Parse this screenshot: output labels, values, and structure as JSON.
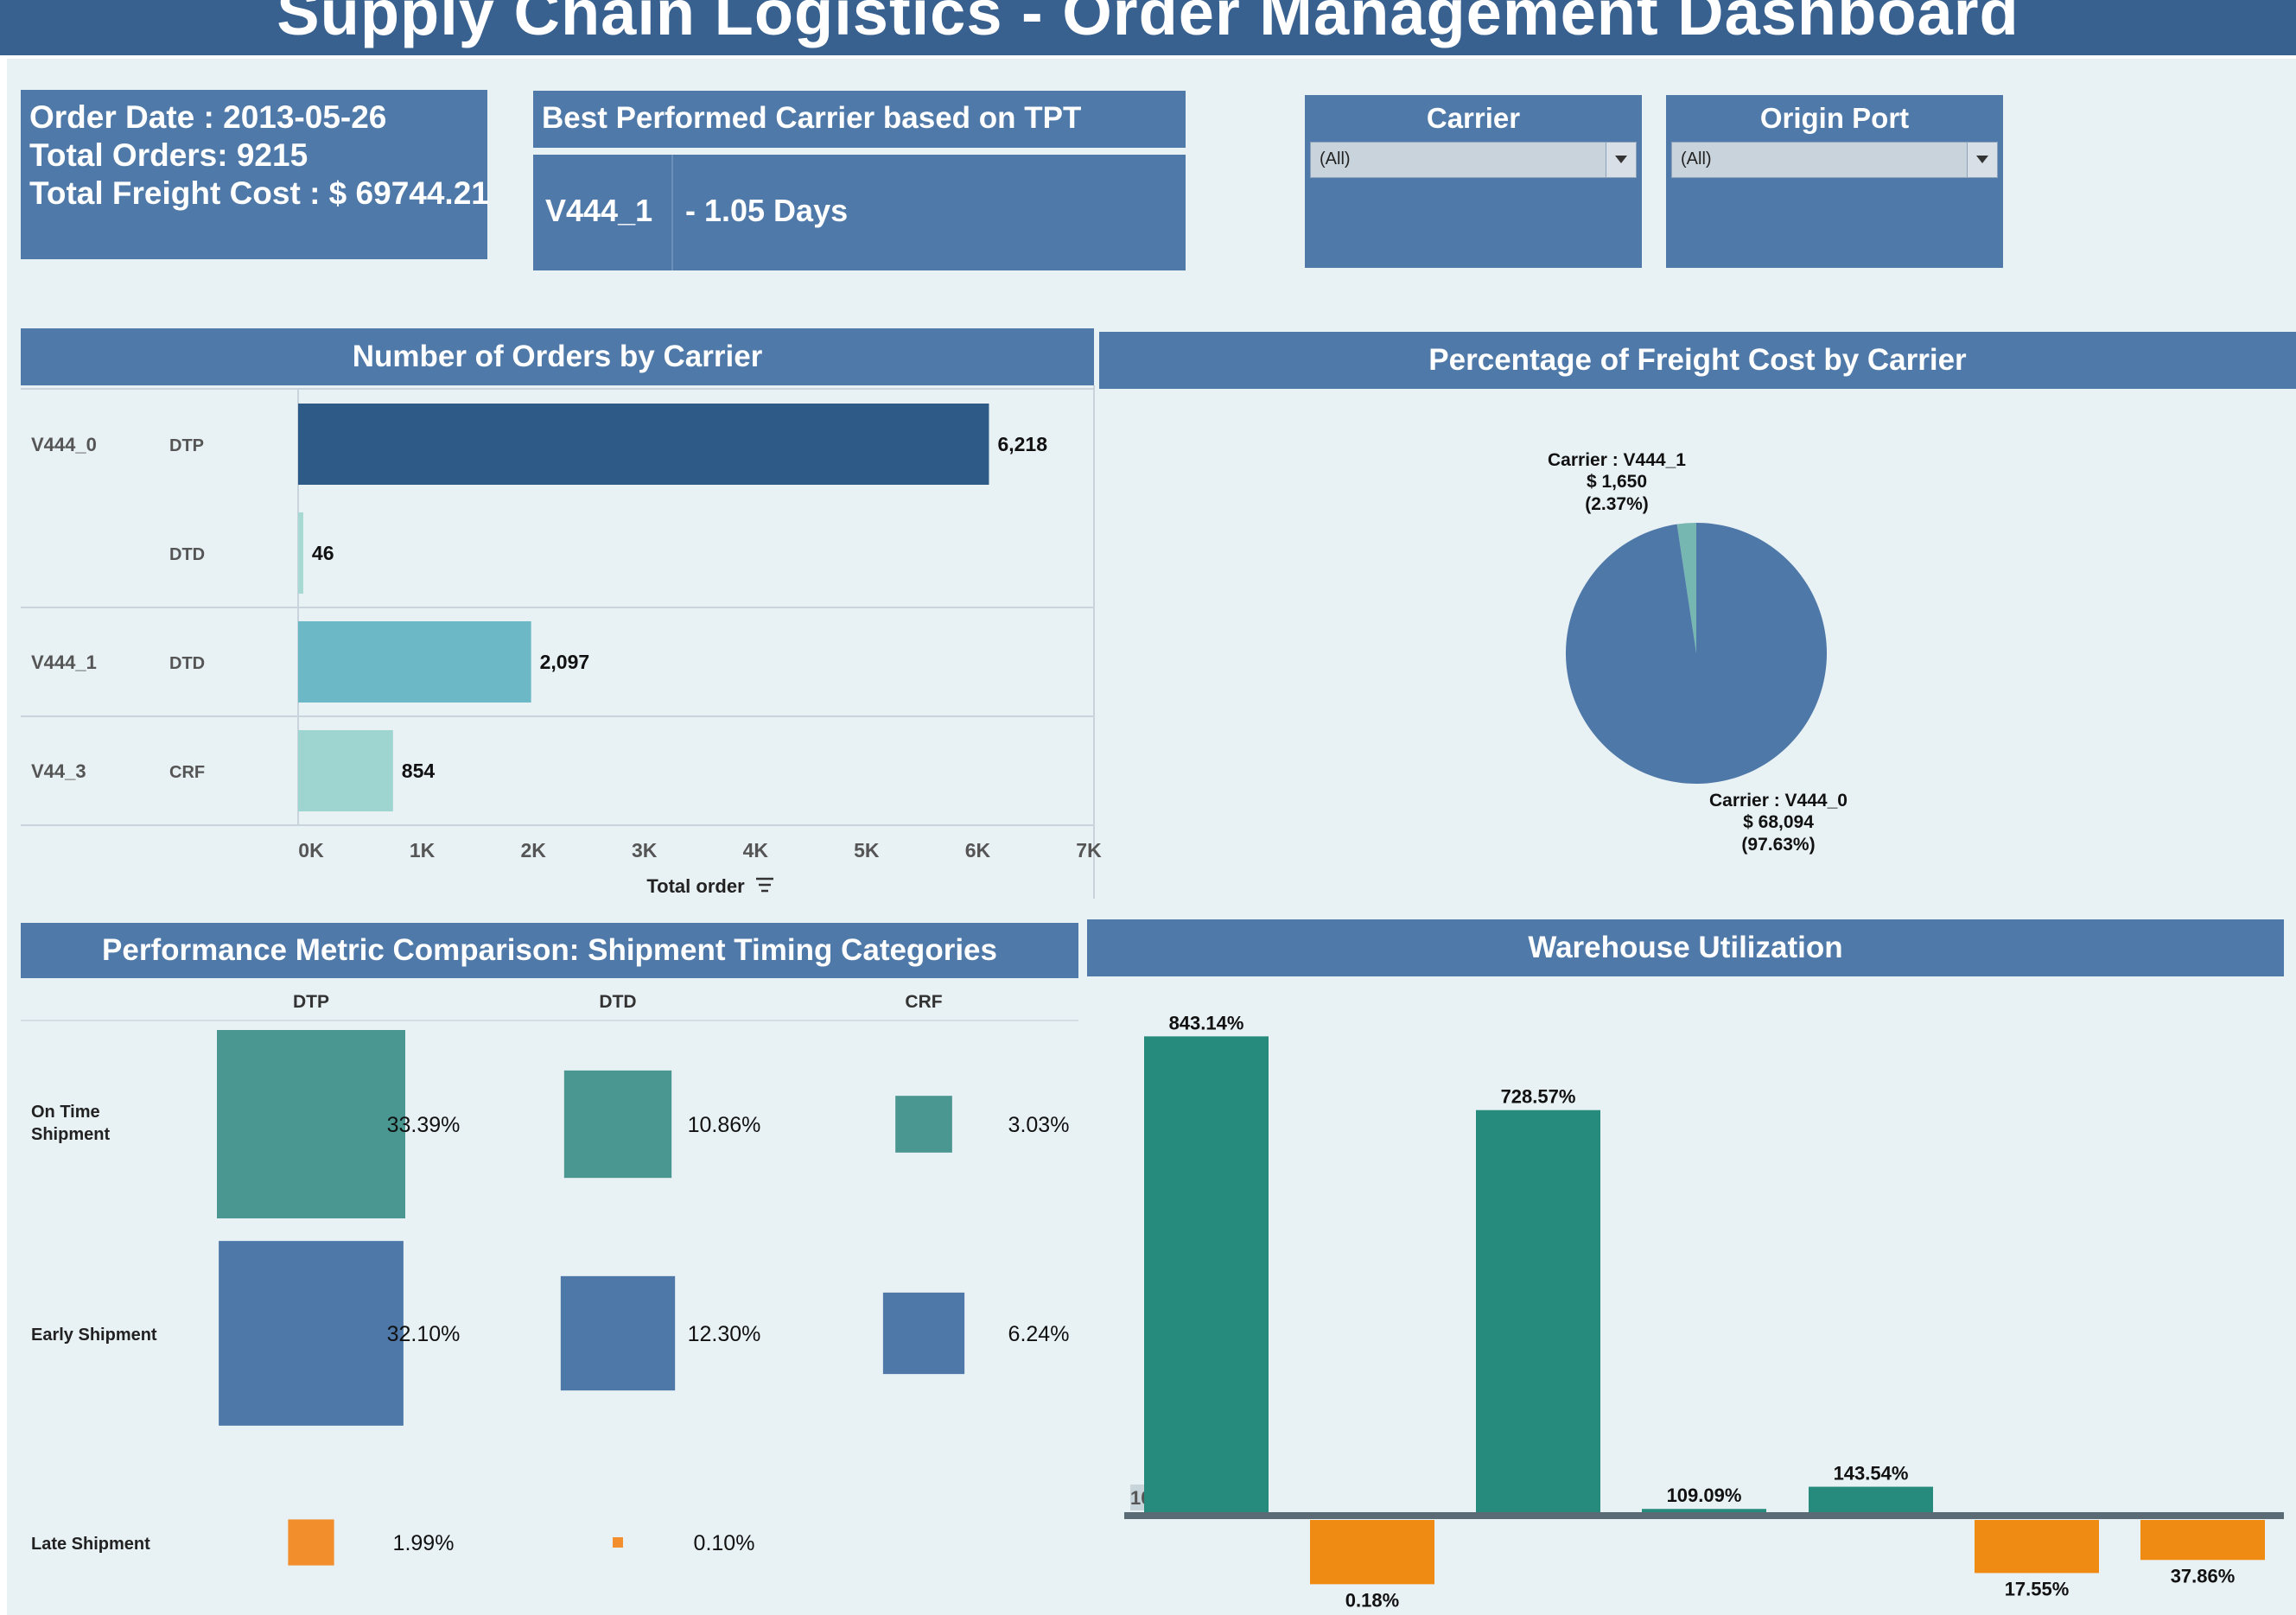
{
  "title": "Supply Chain Logistics - Order Management Dashboard",
  "kpi": {
    "order_date": "Order Date : 2013-05-26",
    "total_orders": "Total Orders: 9215",
    "total_freight": "Total Freight Cost : $ 69744.21"
  },
  "best_carrier": {
    "header": "Best Performed Carrier based on TPT",
    "carrier": "V444_1",
    "days": "- 1.05 Days"
  },
  "filters": {
    "carrier": {
      "title": "Carrier",
      "value": "(All)"
    },
    "origin_port": {
      "title": "Origin Port",
      "value": "(All)"
    }
  },
  "colors": {
    "header_bg": "#4f79a8",
    "title_bg": "#38618f",
    "canvas_bg": "#e8f1f4",
    "dark_blue": "#2e5a88",
    "pale_teal": "#a5d9d2",
    "mid_teal": "#6db8c6",
    "teal": "#4a9690",
    "blue": "#4e78a8",
    "orange": "#f28e2b",
    "green": "#268a7d",
    "warehouse_orange": "#ef8b13"
  },
  "chart_data": [
    {
      "id": "orders_by_carrier",
      "type": "bar",
      "orientation": "horizontal",
      "title": "Number of Orders by Carrier",
      "xlabel": "Total order",
      "xlim": [
        0,
        7000
      ],
      "ticks": [
        "0K",
        "1K",
        "2K",
        "3K",
        "4K",
        "5K",
        "6K",
        "7K"
      ],
      "rows": [
        {
          "carrier": "V444_0",
          "service": "DTP",
          "value": 6218,
          "label": "6,218",
          "color": "#2e5a88"
        },
        {
          "carrier": "",
          "service": "DTD",
          "value": 46,
          "label": "46",
          "color": "#a5d9d2"
        },
        {
          "carrier": "V444_1",
          "service": "DTD",
          "value": 2097,
          "label": "2,097",
          "color": "#6db8c6"
        },
        {
          "carrier": "V44_3",
          "service": "CRF",
          "value": 854,
          "label": "854",
          "color": "#9fd5d1"
        }
      ]
    },
    {
      "id": "freight_cost_pie",
      "type": "pie",
      "title": "Percentage of Freight Cost by Carrier",
      "slices": [
        {
          "label_1": "Carrier : V444_1",
          "label_2": "$ 1,650",
          "label_3": "(2.37%)",
          "value": 2.37,
          "color": "#76b7b2"
        },
        {
          "label_1": "Carrier : V444_0",
          "label_2": "$ 68,094",
          "label_3": "(97.63%)",
          "value": 97.63,
          "color": "#4e78a8"
        }
      ]
    },
    {
      "id": "shipment_timing",
      "type": "heatmap",
      "title": "Performance Metric Comparison: Shipment Timing Categories",
      "columns": [
        "DTP",
        "DTD",
        "CRF"
      ],
      "rows": [
        {
          "label_1": "On Time",
          "label_2": "Shipment",
          "color": "#4a9690",
          "values": [
            33.39,
            10.86,
            3.03
          ],
          "labels": [
            "33.39%",
            "10.86%",
            "3.03%"
          ]
        },
        {
          "label_1": "Early Shipment",
          "label_2": "",
          "color": "#4e78a8",
          "values": [
            32.1,
            12.3,
            6.24
          ],
          "labels": [
            "32.10%",
            "12.30%",
            "6.24%"
          ]
        },
        {
          "label_1": "Late Shipment",
          "label_2": "",
          "color": "#f28e2b",
          "values": [
            1.99,
            0.1,
            null
          ],
          "labels": [
            "1.99%",
            "0.10%",
            ""
          ]
        }
      ]
    },
    {
      "id": "warehouse_utilization",
      "type": "bar",
      "title": "Warehouse Utilization",
      "baseline": 100,
      "baseline_label": "100%",
      "ylim": [
        0,
        900
      ],
      "bars": [
        {
          "value": 843.14,
          "label": "843.14%"
        },
        {
          "value": 0.18,
          "label": "0.18%"
        },
        {
          "value": 728.57,
          "label": "728.57%"
        },
        {
          "value": 109.09,
          "label": "109.09%"
        },
        {
          "value": 143.54,
          "label": "143.54%"
        },
        {
          "value": 17.55,
          "label": "17.55%"
        },
        {
          "value": 37.86,
          "label": "37.86%"
        }
      ]
    }
  ]
}
